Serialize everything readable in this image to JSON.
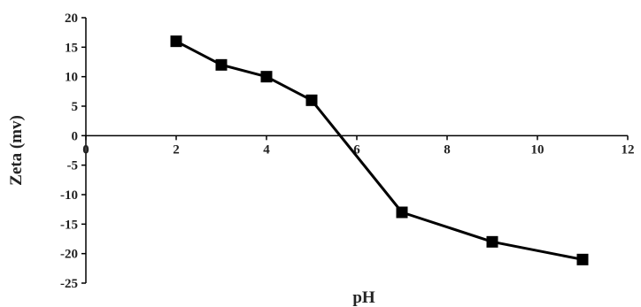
{
  "chart_data": {
    "type": "line",
    "title": "",
    "xlabel": "pH",
    "ylabel": "Zeta (mv)",
    "xlim": [
      0,
      12
    ],
    "ylim": [
      -25,
      20
    ],
    "x_ticks": [
      "0",
      "2",
      "4",
      "6",
      "8",
      "10",
      "12"
    ],
    "y_ticks": [
      "20",
      "15",
      "10",
      "5",
      "0",
      "-5",
      "-10",
      "-15",
      "-20",
      "-25"
    ],
    "grid": false,
    "legend": "none",
    "line_color": "#000000",
    "marker": "square",
    "series": [
      {
        "x": [
          2,
          3,
          4,
          5,
          7,
          9,
          11
        ],
        "y": [
          16,
          12,
          10,
          6,
          -13,
          -18,
          -21
        ]
      }
    ]
  }
}
